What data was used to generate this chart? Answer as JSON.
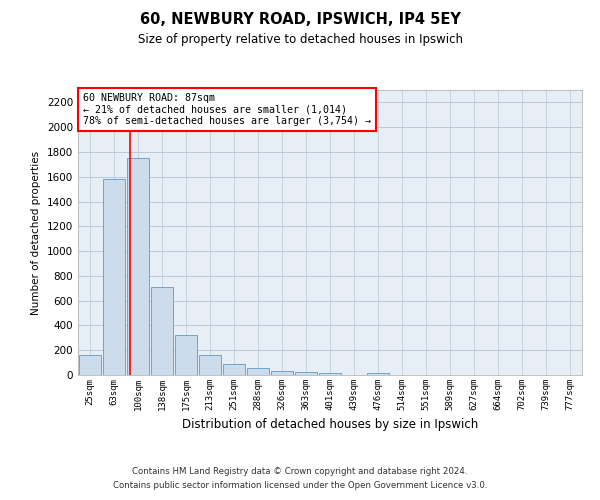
{
  "title1": "60, NEWBURY ROAD, IPSWICH, IP4 5EY",
  "title2": "Size of property relative to detached houses in Ipswich",
  "xlabel": "Distribution of detached houses by size in Ipswich",
  "ylabel": "Number of detached properties",
  "categories": [
    "25sqm",
    "63sqm",
    "100sqm",
    "138sqm",
    "175sqm",
    "213sqm",
    "251sqm",
    "288sqm",
    "326sqm",
    "363sqm",
    "401sqm",
    "439sqm",
    "476sqm",
    "514sqm",
    "551sqm",
    "589sqm",
    "627sqm",
    "664sqm",
    "702sqm",
    "739sqm",
    "777sqm"
  ],
  "values": [
    160,
    1580,
    1750,
    710,
    320,
    160,
    90,
    55,
    35,
    25,
    20,
    0,
    20,
    0,
    0,
    0,
    0,
    0,
    0,
    0,
    0
  ],
  "bar_color": "#ccdcec",
  "bar_edge_color": "#5a9ac8",
  "grid_color": "#bbc8d8",
  "background_color": "#e8eef6",
  "annotation_box_text": "60 NEWBURY ROAD: 87sqm\n← 21% of detached houses are smaller (1,014)\n78% of semi-detached houses are larger (3,754) →",
  "vline_x": 1.65,
  "ylim": [
    0,
    2300
  ],
  "yticks": [
    0,
    200,
    400,
    600,
    800,
    1000,
    1200,
    1400,
    1600,
    1800,
    2000,
    2200
  ],
  "footer1": "Contains HM Land Registry data © Crown copyright and database right 2024.",
  "footer2": "Contains public sector information licensed under the Open Government Licence v3.0."
}
